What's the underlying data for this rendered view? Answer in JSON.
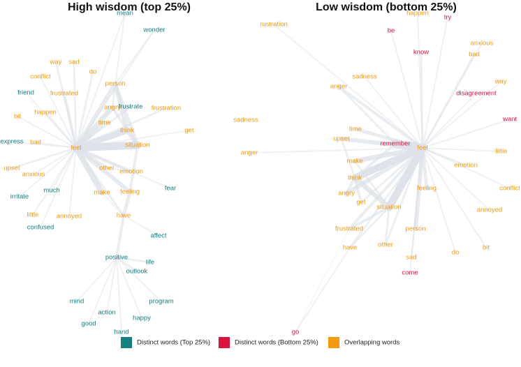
{
  "colors": {
    "distinct_top": "#13817f",
    "distinct_bottom": "#dc143c",
    "overlapping": "#f59a0c"
  },
  "legend": [
    {
      "label": "Distinct words (Top 25%)",
      "group": "distinct_top"
    },
    {
      "label": "Distinct words (Bottom 25%)",
      "group": "distinct_bottom"
    },
    {
      "label": "Overlapping words",
      "group": "overlapping"
    }
  ],
  "panels": [
    {
      "title": "High wisdom (top 25%)",
      "words": [
        {
          "text": "mean",
          "group": "distinct_top"
        },
        {
          "text": "wonder",
          "group": "distinct_top"
        },
        {
          "text": "way",
          "group": "overlapping"
        },
        {
          "text": "sad",
          "group": "overlapping"
        },
        {
          "text": "do",
          "group": "overlapping"
        },
        {
          "text": "conflict",
          "group": "overlapping"
        },
        {
          "text": "person",
          "group": "overlapping"
        },
        {
          "text": "friend",
          "group": "distinct_top"
        },
        {
          "text": "frustrated",
          "group": "overlapping"
        },
        {
          "text": "angry",
          "group": "overlapping"
        },
        {
          "text": "frustrate",
          "group": "distinct_top"
        },
        {
          "text": "frustration",
          "group": "overlapping"
        },
        {
          "text": "happen",
          "group": "overlapping"
        },
        {
          "text": "bit",
          "group": "overlapping"
        },
        {
          "text": "time",
          "group": "overlapping"
        },
        {
          "text": "think",
          "group": "overlapping"
        },
        {
          "text": "get",
          "group": "overlapping"
        },
        {
          "text": "express",
          "group": "distinct_top"
        },
        {
          "text": "bad",
          "group": "overlapping"
        },
        {
          "text": "situation",
          "group": "overlapping"
        },
        {
          "text": "feel",
          "group": "overlapping"
        },
        {
          "text": "upset",
          "group": "overlapping"
        },
        {
          "text": "other",
          "group": "overlapping"
        },
        {
          "text": "emotion",
          "group": "overlapping"
        },
        {
          "text": "anxious",
          "group": "overlapping"
        },
        {
          "text": "much",
          "group": "distinct_top"
        },
        {
          "text": "fear",
          "group": "distinct_top"
        },
        {
          "text": "feeling",
          "group": "overlapping"
        },
        {
          "text": "make",
          "group": "overlapping"
        },
        {
          "text": "irritate",
          "group": "distinct_top"
        },
        {
          "text": "little",
          "group": "overlapping"
        },
        {
          "text": "annoyed",
          "group": "overlapping"
        },
        {
          "text": "have",
          "group": "overlapping"
        },
        {
          "text": "confused",
          "group": "distinct_top"
        },
        {
          "text": "affect",
          "group": "distinct_top"
        },
        {
          "text": "positive",
          "group": "distinct_top"
        },
        {
          "text": "life",
          "group": "distinct_top"
        },
        {
          "text": "outlook",
          "group": "distinct_top"
        },
        {
          "text": "mind",
          "group": "distinct_top"
        },
        {
          "text": "program",
          "group": "distinct_top"
        },
        {
          "text": "action",
          "group": "distinct_top"
        },
        {
          "text": "happy",
          "group": "distinct_top"
        },
        {
          "text": "good",
          "group": "distinct_top"
        },
        {
          "text": "hand",
          "group": "distinct_top"
        }
      ]
    },
    {
      "title": "Low wisdom (bottom 25%)",
      "words": [
        {
          "text": "rustration",
          "group": "overlapping"
        },
        {
          "text": "happen",
          "group": "overlapping"
        },
        {
          "text": "try",
          "group": "distinct_bottom"
        },
        {
          "text": "be",
          "group": "distinct_bottom"
        },
        {
          "text": "anxious",
          "group": "overlapping"
        },
        {
          "text": "know",
          "group": "distinct_bottom"
        },
        {
          "text": "bad",
          "group": "overlapping"
        },
        {
          "text": "sadness",
          "group": "overlapping"
        },
        {
          "text": "way",
          "group": "overlapping"
        },
        {
          "text": "anger",
          "group": "overlapping"
        },
        {
          "text": "disagreement",
          "group": "distinct_bottom"
        },
        {
          "text": "want",
          "group": "distinct_bottom"
        },
        {
          "text": "sadness",
          "group": "overlapping"
        },
        {
          "text": "time",
          "group": "overlapping"
        },
        {
          "text": "upset",
          "group": "overlapping"
        },
        {
          "text": "remember",
          "group": "distinct_bottom"
        },
        {
          "text": "feel",
          "group": "overlapping"
        },
        {
          "text": "little",
          "group": "overlapping"
        },
        {
          "text": "anger",
          "group": "overlapping"
        },
        {
          "text": "make",
          "group": "overlapping"
        },
        {
          "text": "emotion",
          "group": "overlapping"
        },
        {
          "text": "think",
          "group": "overlapping"
        },
        {
          "text": "feeling",
          "group": "overlapping"
        },
        {
          "text": "conflict",
          "group": "overlapping"
        },
        {
          "text": "angry",
          "group": "overlapping"
        },
        {
          "text": "get",
          "group": "overlapping"
        },
        {
          "text": "situation",
          "group": "overlapping"
        },
        {
          "text": "annoyed",
          "group": "overlapping"
        },
        {
          "text": "frustrated",
          "group": "overlapping"
        },
        {
          "text": "person",
          "group": "overlapping"
        },
        {
          "text": "have",
          "group": "overlapping"
        },
        {
          "text": "other",
          "group": "overlapping"
        },
        {
          "text": "bit",
          "group": "overlapping"
        },
        {
          "text": "do",
          "group": "overlapping"
        },
        {
          "text": "sad",
          "group": "overlapping"
        },
        {
          "text": "come",
          "group": "distinct_bottom"
        },
        {
          "text": "go",
          "group": "distinct_bottom"
        }
      ]
    }
  ]
}
